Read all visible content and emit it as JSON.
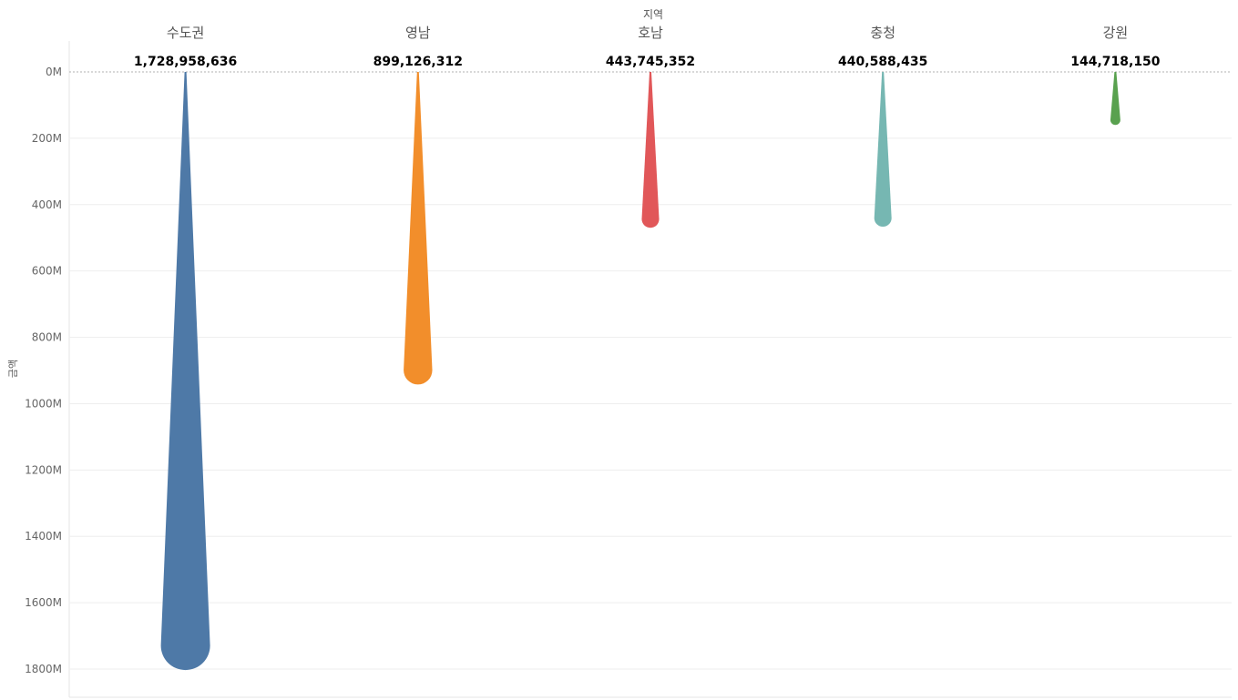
{
  "chart_data": {
    "type": "bar",
    "x_title": "지역",
    "y_title": "금액",
    "categories": [
      "수도권",
      "영남",
      "호남",
      "충청",
      "강원"
    ],
    "values": [
      1728958636,
      899126312,
      443745352,
      440588435,
      144718150
    ],
    "value_labels": [
      "1,728,958,636",
      "899,126,312",
      "443,745,352",
      "440,588,435",
      "144,718,150"
    ],
    "colors": [
      "#4e79a7",
      "#f28e2b",
      "#e15759",
      "#76b7b2",
      "#59a14f"
    ],
    "y_ticks": [
      {
        "value": 0,
        "label": "0M"
      },
      {
        "value": 200000000,
        "label": "200M"
      },
      {
        "value": 400000000,
        "label": "400M"
      },
      {
        "value": 600000000,
        "label": "600M"
      },
      {
        "value": 800000000,
        "label": "800M"
      },
      {
        "value": 1000000000,
        "label": "1000M"
      },
      {
        "value": 1200000000,
        "label": "1200M"
      },
      {
        "value": 1400000000,
        "label": "1400M"
      },
      {
        "value": 1600000000,
        "label": "1600M"
      },
      {
        "value": 1800000000,
        "label": "1800M"
      }
    ],
    "ylim": [
      0,
      1800000000
    ],
    "y_reversed": true,
    "grid": true,
    "legend": "none"
  }
}
